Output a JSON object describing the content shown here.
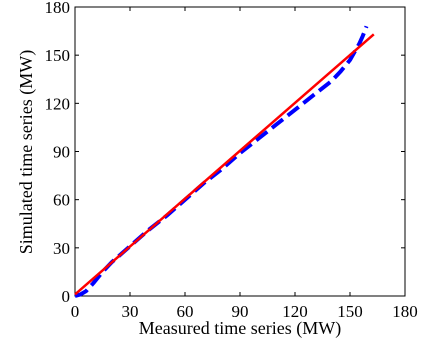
{
  "chart_data": {
    "type": "line",
    "title": "",
    "xlabel": "Measured time series (MW)",
    "ylabel": "Simulated time series (MW)",
    "xlim": [
      0,
      180
    ],
    "ylim": [
      0,
      180
    ],
    "xticks": [
      0,
      30,
      60,
      90,
      120,
      150,
      180
    ],
    "yticks": [
      0,
      30,
      60,
      90,
      120,
      150,
      180
    ],
    "grid": false,
    "legend": "none",
    "series": [
      {
        "style": "dashed",
        "color": "#0000ff",
        "x": [
          0,
          3,
          6,
          10,
          15,
          20,
          30,
          40,
          50,
          60,
          70,
          80,
          90,
          100,
          110,
          120,
          130,
          140,
          145,
          150,
          153,
          155,
          157,
          158,
          159
        ],
        "y": [
          0,
          1,
          3,
          8,
          15,
          21,
          31,
          41,
          50,
          60,
          70,
          79,
          89,
          98,
          107,
          116,
          125,
          134,
          140,
          147,
          153,
          157,
          162,
          165,
          168
        ]
      },
      {
        "style": "solid",
        "color": "#ff0000",
        "x": [
          0,
          163
        ],
        "y": [
          1,
          163
        ]
      }
    ]
  }
}
